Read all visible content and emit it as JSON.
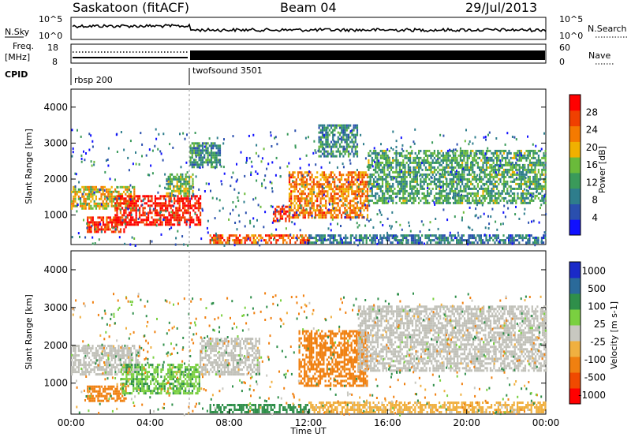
{
  "header": {
    "site": "Saskatoon (fitACF)",
    "beam": "Beam 04",
    "date": "29/Jul/2013"
  },
  "strip_labels": {
    "nsky": "N.Sky",
    "freq_line1": "Freq.",
    "freq_line2": "[MHz]",
    "cpid": "CPID",
    "nsearch": "N.Search",
    "nave": "Nave",
    "nsky_hi": "10^5",
    "nsky_lo": "10^0",
    "nsearch_hi": "10^5",
    "nsearch_lo": "10^0",
    "freq_hi": "18",
    "freq_lo": "8",
    "nave_hi": "60",
    "nave_lo": "0"
  },
  "cpid_segments": [
    {
      "label": "rbsp 200",
      "start_hour": 0
    },
    {
      "label": "twofsound 3501",
      "start_hour": 6
    }
  ],
  "colors": {
    "power_scale": [
      "#1010ff",
      "#2a4fae",
      "#2e7d8c",
      "#3a9a5a",
      "#6aba3a",
      "#f0b000",
      "#f57a00",
      "#f04000",
      "#ff0000"
    ],
    "velocity_scale": [
      "#1a2ac8",
      "#2a6a9a",
      "#2f8f4a",
      "#7ad040",
      "#c8c8c0",
      "#f0b040",
      "#f08010",
      "#f04a00",
      "#ff0000"
    ],
    "ground_scatter": "#c0c0b8"
  },
  "chart_data": [
    {
      "type": "heatmap",
      "panel": "power",
      "xlabel": "Time UT",
      "ylabel": "Slant Range [km]",
      "xlim": [
        0,
        24
      ],
      "ylim": [
        180,
        4500
      ],
      "x_ticks": [
        "00:00",
        "04:00",
        "08:00",
        "12:00",
        "16:00",
        "20:00",
        "00:00"
      ],
      "y_ticks": [
        "1000",
        "2000",
        "3000",
        "4000"
      ],
      "y_tick_values": [
        1000,
        2000,
        3000,
        4000
      ],
      "colorbar": {
        "label": "Power [dB]",
        "ticks": [
          "28",
          "24",
          "20",
          "16",
          "12",
          "8",
          "4"
        ],
        "range": [
          0,
          30
        ]
      },
      "regions": [
        {
          "t0": 0.0,
          "t1": 3.2,
          "r0": 1150,
          "r1": 1800,
          "value": 18
        },
        {
          "t0": 0.8,
          "t1": 2.8,
          "r0": 500,
          "r1": 900,
          "value": 26
        },
        {
          "t0": 2.2,
          "t1": 6.5,
          "r0": 700,
          "r1": 1500,
          "value": 28
        },
        {
          "t0": 4.8,
          "t1": 6.2,
          "r0": 1500,
          "r1": 2100,
          "value": 14
        },
        {
          "t0": 6.0,
          "t1": 7.5,
          "r0": 2300,
          "r1": 3000,
          "value": 10
        },
        {
          "t0": 7.0,
          "t1": 12.0,
          "r0": 200,
          "r1": 400,
          "value": 24
        },
        {
          "t0": 10.2,
          "t1": 11.0,
          "r0": 800,
          "r1": 1200,
          "value": 26
        },
        {
          "t0": 11.0,
          "t1": 15.0,
          "r0": 900,
          "r1": 2200,
          "value": 22
        },
        {
          "t0": 12.5,
          "t1": 14.5,
          "r0": 2600,
          "r1": 3500,
          "value": 10
        },
        {
          "t0": 15.0,
          "t1": 24.0,
          "r0": 1300,
          "r1": 2800,
          "value": 12
        },
        {
          "t0": 12.0,
          "t1": 24.0,
          "r0": 200,
          "r1": 450,
          "value": 8
        }
      ]
    },
    {
      "type": "heatmap",
      "panel": "velocity",
      "xlabel": "Time UT",
      "ylabel": "Slant Range [km]",
      "xlim": [
        0,
        24
      ],
      "ylim": [
        180,
        4500
      ],
      "x_ticks": [
        "00:00",
        "04:00",
        "08:00",
        "12:00",
        "16:00",
        "20:00",
        "00:00"
      ],
      "y_ticks": [
        "1000",
        "2000",
        "3000",
        "4000"
      ],
      "y_tick_values": [
        1000,
        2000,
        3000,
        4000
      ],
      "colorbar": {
        "label": "Velocity [m s-1]",
        "ticks": [
          "1000",
          "500",
          "100",
          "25",
          "-25",
          "-100",
          "-500",
          "-1000"
        ],
        "range": [
          -1000,
          1000
        ]
      },
      "regions": [
        {
          "t0": 0.0,
          "t1": 3.5,
          "r0": 1200,
          "r1": 2000,
          "value": 0,
          "ground": true
        },
        {
          "t0": 0.8,
          "t1": 2.8,
          "r0": 500,
          "r1": 900,
          "value": -150
        },
        {
          "t0": 2.5,
          "t1": 6.5,
          "r0": 700,
          "r1": 1500,
          "value": 80
        },
        {
          "t0": 6.5,
          "t1": 9.5,
          "r0": 1200,
          "r1": 2200,
          "value": 0,
          "ground": true
        },
        {
          "t0": 7.0,
          "t1": 12.0,
          "r0": 200,
          "r1": 450,
          "value": 150
        },
        {
          "t0": 11.5,
          "t1": 15.0,
          "r0": 900,
          "r1": 2400,
          "value": -250
        },
        {
          "t0": 14.5,
          "t1": 24.0,
          "r0": 1300,
          "r1": 3000,
          "value": 0,
          "ground": true
        },
        {
          "t0": 12.0,
          "t1": 24.0,
          "r0": 200,
          "r1": 500,
          "value": -60
        }
      ]
    }
  ]
}
